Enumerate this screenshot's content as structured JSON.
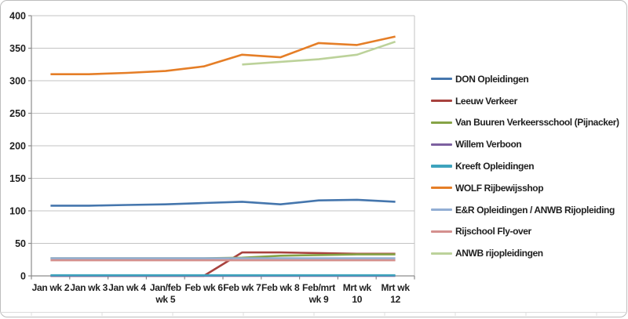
{
  "window": {
    "background": "#FFFFFF",
    "frame_border_color": "#BDBDBD",
    "gridline_color": "#C3C3C3",
    "axis_color": "#8C8C8C",
    "worksheet_line_color": "#DCDCDC",
    "text_color": "#1F1F1F"
  },
  "chart_data": {
    "type": "line",
    "title": "",
    "xlabel": "",
    "ylabel": "",
    "ylim": [
      0,
      400
    ],
    "ytick_step": 50,
    "yticks": [
      0,
      50,
      100,
      150,
      200,
      250,
      300,
      350,
      400
    ],
    "grid": "horizontal",
    "legend_position": "right",
    "categories": [
      "Jan wk 2",
      "Jan wk 3",
      "Jan wk 4",
      "Jan/feb wk 5",
      "Feb wk 6",
      "Feb wk 7",
      "Feb wk 8",
      "Feb/mrt wk 9",
      "Mrt wk 10",
      "Mrt wk 12"
    ],
    "category_label_lines": [
      [
        "Jan wk 2"
      ],
      [
        "Jan wk 3"
      ],
      [
        "Jan wk 4"
      ],
      [
        "Jan/feb",
        "wk 5"
      ],
      [
        "Feb wk 6"
      ],
      [
        "Feb wk 7"
      ],
      [
        "Feb wk 8"
      ],
      [
        "Feb/mrt",
        "wk 9"
      ],
      [
        "Mrt wk",
        "10"
      ],
      [
        "Mrt wk",
        "12"
      ]
    ],
    "series": [
      {
        "name": "DON Opleidingen",
        "color": "#4576AD",
        "values": [
          108,
          108,
          109,
          110,
          112,
          114,
          110,
          116,
          117,
          114
        ]
      },
      {
        "name": "Leeuw Verkeer",
        "color": "#A8423E",
        "values": [
          0,
          0,
          0,
          0,
          0,
          36,
          36,
          35,
          34,
          34
        ]
      },
      {
        "name": "Van Buuren Verkeersschool (Pijnacker)",
        "color": "#86A346",
        "values": [
          27,
          27,
          27,
          27,
          27,
          28,
          31,
          32,
          33,
          33
        ]
      },
      {
        "name": "Willem Verboon",
        "color": "#7D60A0",
        "values": [
          0,
          0,
          0,
          0,
          0,
          0,
          0,
          0,
          0,
          0
        ]
      },
      {
        "name": "Kreeft Opleidingen",
        "color": "#3EA3BD",
        "values": [
          1,
          1,
          1,
          1,
          1,
          1,
          1,
          1,
          1,
          1
        ]
      },
      {
        "name": "WOLF Rijbewijsshop",
        "color": "#E57E27",
        "values": [
          310,
          310,
          312,
          315,
          322,
          340,
          336,
          358,
          355,
          368
        ]
      },
      {
        "name": "E&R Opleidingen / ANWB Rijopleiding",
        "color": "#92AED4",
        "values": [
          27,
          27,
          27,
          27,
          27,
          27,
          27,
          27,
          27,
          27
        ]
      },
      {
        "name": "Rijschool Fly-over",
        "color": "#D4908E",
        "values": [
          24,
          24,
          24,
          24,
          24,
          24,
          24,
          24,
          24,
          24
        ]
      },
      {
        "name": "ANWB rijopleidingen",
        "color": "#BCD29A",
        "values": [
          null,
          null,
          null,
          null,
          null,
          325,
          329,
          333,
          340,
          360
        ]
      }
    ]
  }
}
